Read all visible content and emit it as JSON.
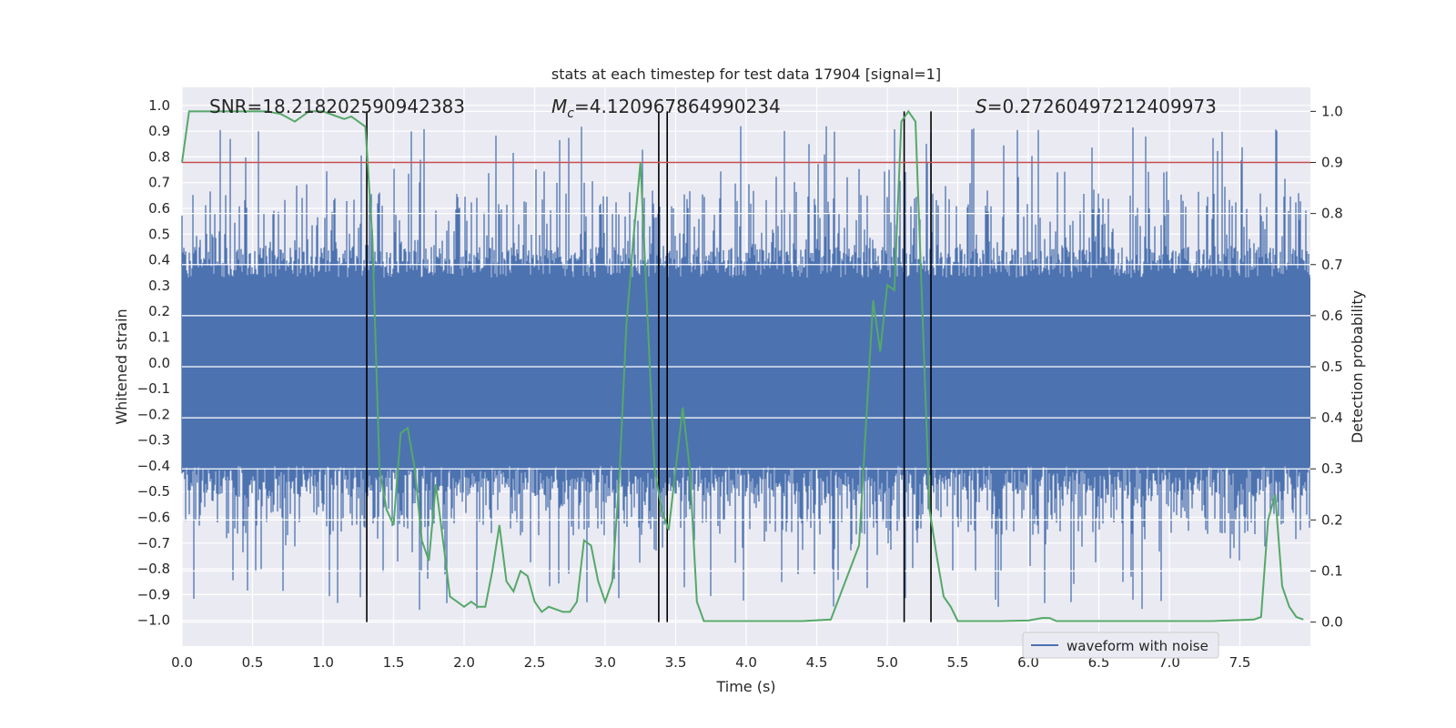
{
  "chart_data": {
    "type": "line",
    "title": "stats at each timestep for test data 17904 [signal=1]",
    "xlabel": "Time (s)",
    "ylabel": "Whitened strain",
    "y2label": "Detection probability",
    "xlim": [
      0,
      8.0
    ],
    "ylim": [
      -1.1,
      1.07
    ],
    "y2lim": [
      -0.047,
      1.047
    ],
    "xticks": [
      "0.0",
      "0.5",
      "1.0",
      "1.5",
      "2.0",
      "2.5",
      "3.0",
      "3.5",
      "4.0",
      "4.5",
      "5.0",
      "5.5",
      "6.0",
      "6.5",
      "7.0",
      "7.5"
    ],
    "yticks": [
      "1.0",
      "0.9",
      "0.8",
      "0.7",
      "0.6",
      "0.5",
      "0.4",
      "0.3",
      "0.2",
      "0.1",
      "0.0",
      "-0.1",
      "-0.2",
      "-0.3",
      "-0.4",
      "-0.5",
      "-0.6",
      "-0.7",
      "-0.8",
      "-0.9",
      "-1.0"
    ],
    "y2ticks": [
      "1.0",
      "0.9",
      "0.8",
      "0.7",
      "0.6",
      "0.5",
      "0.4",
      "0.3",
      "0.2",
      "0.1",
      "0.0"
    ],
    "annotations": {
      "snr": "SNR=18.218202590942383",
      "mc_symbol": "M",
      "mc_subscript": "c",
      "mc_value": "=4.120967864990234",
      "s_symbol": "S",
      "s_value": "=0.27260497212409973"
    },
    "threshold": 0.9,
    "vertical_lines": [
      1.31,
      3.38,
      3.44,
      5.12,
      5.31
    ],
    "legend": {
      "label": "waveform with noise",
      "position": "lower right"
    },
    "grid": true,
    "colors": {
      "waveform": "#4c72b0",
      "probability": "#55a868",
      "threshold": "#c44e52",
      "vlines": "#000000",
      "background": "#eaeaf2"
    },
    "series": [
      {
        "name": "waveform with noise",
        "axis": "left",
        "style": "dense noise, band approx -0.42 to 0.36 with spikes reaching about 0.95 and -1.0"
      },
      {
        "name": "",
        "axis": "right",
        "x": [
          0.0,
          0.05,
          0.1,
          0.2,
          0.3,
          0.4,
          0.5,
          0.6,
          0.7,
          0.8,
          0.85,
          0.9,
          0.95,
          1.0,
          1.05,
          1.1,
          1.15,
          1.2,
          1.25,
          1.3,
          1.35,
          1.4,
          1.45,
          1.5,
          1.55,
          1.6,
          1.65,
          1.7,
          1.75,
          1.8,
          1.85,
          1.9,
          1.95,
          2.0,
          2.05,
          2.1,
          2.15,
          2.2,
          2.25,
          2.3,
          2.35,
          2.4,
          2.45,
          2.5,
          2.55,
          2.6,
          2.65,
          2.7,
          2.75,
          2.8,
          2.85,
          2.9,
          2.95,
          3.0,
          3.05,
          3.1,
          3.15,
          3.2,
          3.25,
          3.3,
          3.35,
          3.4,
          3.45,
          3.5,
          3.55,
          3.6,
          3.65,
          3.7,
          3.75,
          3.8,
          3.9,
          4.0,
          4.2,
          4.4,
          4.6,
          4.8,
          4.9,
          4.95,
          5.0,
          5.05,
          5.1,
          5.15,
          5.2,
          5.25,
          5.3,
          5.35,
          5.4,
          5.45,
          5.5,
          5.55,
          5.6,
          5.7,
          5.8,
          6.0,
          6.1,
          6.15,
          6.2,
          6.25,
          6.3,
          6.5,
          6.7,
          6.9,
          7.1,
          7.3,
          7.5,
          7.6,
          7.65,
          7.7,
          7.75,
          7.8,
          7.85,
          7.9,
          7.95
        ],
        "values": [
          0.9,
          1.0,
          1.0,
          1.0,
          1.0,
          1.0,
          1.0,
          1.0,
          0.995,
          0.98,
          0.99,
          1.0,
          1.0,
          1.0,
          0.995,
          0.99,
          0.985,
          0.99,
          0.98,
          0.97,
          0.75,
          0.3,
          0.22,
          0.19,
          0.37,
          0.38,
          0.3,
          0.16,
          0.12,
          0.27,
          0.16,
          0.05,
          0.04,
          0.03,
          0.04,
          0.03,
          0.03,
          0.1,
          0.19,
          0.08,
          0.06,
          0.1,
          0.09,
          0.04,
          0.02,
          0.03,
          0.025,
          0.02,
          0.02,
          0.04,
          0.16,
          0.15,
          0.08,
          0.04,
          0.08,
          0.28,
          0.58,
          0.75,
          0.9,
          0.6,
          0.3,
          0.22,
          0.18,
          0.3,
          0.42,
          0.3,
          0.04,
          0.002,
          0.002,
          0.002,
          0.002,
          0.002,
          0.002,
          0.002,
          0.005,
          0.15,
          0.63,
          0.53,
          0.66,
          0.65,
          0.98,
          1.0,
          0.98,
          0.6,
          0.22,
          0.13,
          0.05,
          0.03,
          0.002,
          0.002,
          0.002,
          0.002,
          0.002,
          0.003,
          0.008,
          0.008,
          0.002,
          0.002,
          0.002,
          0.002,
          0.002,
          0.002,
          0.002,
          0.002,
          0.004,
          0.005,
          0.01,
          0.2,
          0.25,
          0.07,
          0.03,
          0.01,
          0.005
        ]
      }
    ]
  }
}
